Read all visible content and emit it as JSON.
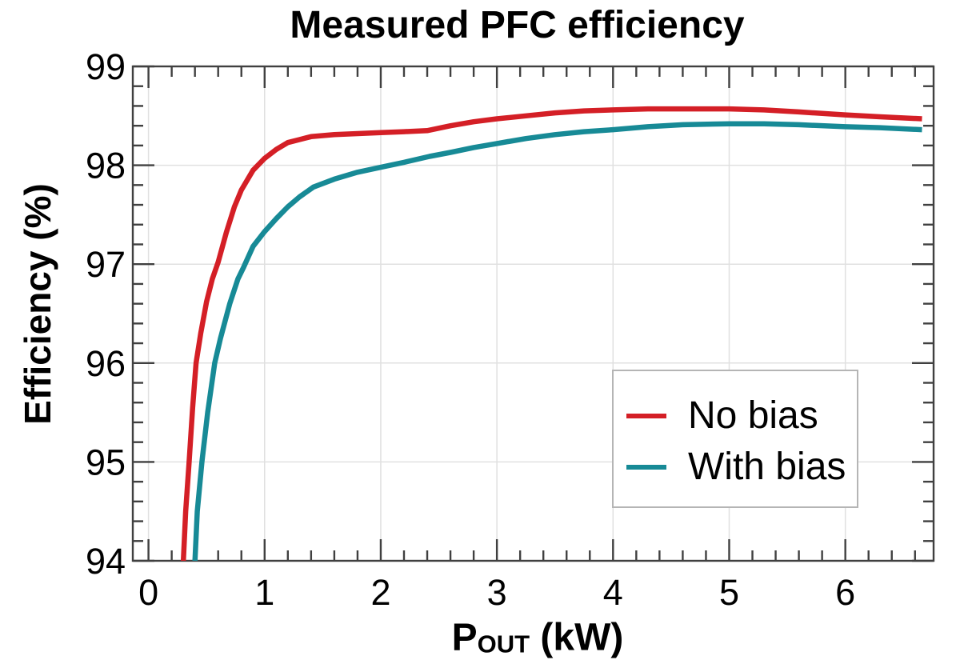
{
  "title": "Measured PFC efficiency",
  "axes": {
    "ylabel": "Efficiency (%)",
    "xlabel_main": "P",
    "xlabel_sub": "OUT",
    "xlabel_unit": " (kW)"
  },
  "legend": {
    "items": [
      {
        "label": "No bias",
        "color": "#d41f26"
      },
      {
        "label": "With bias",
        "color": "#178a96"
      }
    ]
  },
  "colors": {
    "background": "#ffffff",
    "grid": "#e0e0e0",
    "frame": "#404040",
    "legend_border": "#b5b5b5",
    "red_series": "#d41f26",
    "teal_series": "#178a96"
  },
  "chart_data": {
    "type": "line",
    "title": "Measured PFC efficiency",
    "xlabel": "P_OUT (kW)",
    "ylabel": "Efficiency (%)",
    "xlim": [
      -0.135,
      6.76
    ],
    "ylim": [
      94,
      99
    ],
    "grid": true,
    "legend_position": "lower right",
    "xticks": {
      "values": [
        0,
        1,
        2,
        3,
        4,
        5,
        6
      ],
      "labels": [
        "0",
        "1",
        "2",
        "3",
        "4",
        "5",
        "6"
      ]
    },
    "yticks": {
      "values": [
        94,
        95,
        96,
        97,
        98,
        99
      ],
      "labels": [
        "94",
        "95",
        "96",
        "97",
        "98",
        "99"
      ]
    },
    "minor_tick_step": {
      "x": 0.2,
      "y": 0.2
    },
    "series": [
      {
        "name": "No bias",
        "color": "#d41f26",
        "points": [
          [
            0.3,
            94.0
          ],
          [
            0.32,
            94.5
          ],
          [
            0.35,
            95.0
          ],
          [
            0.38,
            95.55
          ],
          [
            0.41,
            96.0
          ],
          [
            0.45,
            96.3
          ],
          [
            0.5,
            96.62
          ],
          [
            0.55,
            96.85
          ],
          [
            0.6,
            97.02
          ],
          [
            0.67,
            97.32
          ],
          [
            0.74,
            97.58
          ],
          [
            0.8,
            97.75
          ],
          [
            0.9,
            97.95
          ],
          [
            1.0,
            98.07
          ],
          [
            1.1,
            98.16
          ],
          [
            1.2,
            98.23
          ],
          [
            1.3,
            98.26
          ],
          [
            1.4,
            98.29
          ],
          [
            1.6,
            98.31
          ],
          [
            1.8,
            98.32
          ],
          [
            2.0,
            98.33
          ],
          [
            2.2,
            98.34
          ],
          [
            2.4,
            98.35
          ],
          [
            2.6,
            98.4
          ],
          [
            2.8,
            98.44
          ],
          [
            3.0,
            98.47
          ],
          [
            3.25,
            98.5
          ],
          [
            3.5,
            98.53
          ],
          [
            3.75,
            98.55
          ],
          [
            4.0,
            98.56
          ],
          [
            4.3,
            98.57
          ],
          [
            4.6,
            98.57
          ],
          [
            5.0,
            98.57
          ],
          [
            5.3,
            98.56
          ],
          [
            5.6,
            98.54
          ],
          [
            6.0,
            98.51
          ],
          [
            6.3,
            98.49
          ],
          [
            6.66,
            98.47
          ]
        ]
      },
      {
        "name": "With bias",
        "color": "#178a96",
        "points": [
          [
            0.4,
            94.0
          ],
          [
            0.42,
            94.5
          ],
          [
            0.46,
            95.0
          ],
          [
            0.51,
            95.5
          ],
          [
            0.57,
            96.0
          ],
          [
            0.62,
            96.25
          ],
          [
            0.7,
            96.6
          ],
          [
            0.77,
            96.85
          ],
          [
            0.82,
            96.97
          ],
          [
            0.9,
            97.18
          ],
          [
            1.0,
            97.33
          ],
          [
            1.1,
            97.46
          ],
          [
            1.2,
            97.58
          ],
          [
            1.3,
            97.68
          ],
          [
            1.42,
            97.78
          ],
          [
            1.6,
            97.86
          ],
          [
            1.8,
            97.93
          ],
          [
            2.0,
            97.98
          ],
          [
            2.2,
            98.03
          ],
          [
            2.42,
            98.09
          ],
          [
            2.6,
            98.13
          ],
          [
            2.8,
            98.18
          ],
          [
            3.0,
            98.22
          ],
          [
            3.25,
            98.27
          ],
          [
            3.5,
            98.31
          ],
          [
            3.75,
            98.34
          ],
          [
            4.0,
            98.36
          ],
          [
            4.3,
            98.39
          ],
          [
            4.6,
            98.41
          ],
          [
            5.0,
            98.42
          ],
          [
            5.3,
            98.42
          ],
          [
            5.6,
            98.41
          ],
          [
            6.0,
            98.39
          ],
          [
            6.3,
            98.38
          ],
          [
            6.66,
            98.36
          ]
        ]
      }
    ]
  }
}
